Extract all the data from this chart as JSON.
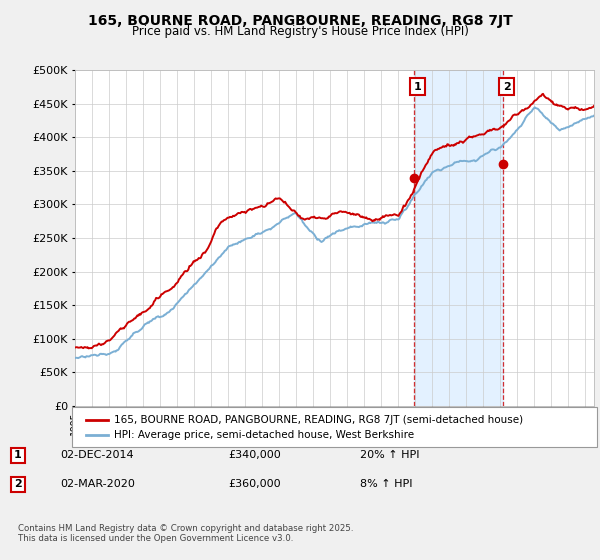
{
  "title": "165, BOURNE ROAD, PANGBOURNE, READING, RG8 7JT",
  "subtitle": "Price paid vs. HM Land Registry's House Price Index (HPI)",
  "legend_line1": "165, BOURNE ROAD, PANGBOURNE, READING, RG8 7JT (semi-detached house)",
  "legend_line2": "HPI: Average price, semi-detached house, West Berkshire",
  "annotation1_date": "02-DEC-2014",
  "annotation1_price": "£340,000",
  "annotation1_hpi": "20% ↑ HPI",
  "annotation2_date": "02-MAR-2020",
  "annotation2_price": "£360,000",
  "annotation2_hpi": "8% ↑ HPI",
  "footnote": "Contains HM Land Registry data © Crown copyright and database right 2025.\nThis data is licensed under the Open Government Licence v3.0.",
  "price_color": "#cc0000",
  "hpi_color": "#7bafd4",
  "hpi_fill_color": "#ddeeff",
  "background_color": "#f0f0f0",
  "plot_bg_color": "#ffffff",
  "trans1_x": 2014.917,
  "trans1_y": 340000,
  "trans2_x": 2020.167,
  "trans2_y": 360000,
  "ylim": [
    0,
    500000
  ],
  "yticks": [
    0,
    50000,
    100000,
    150000,
    200000,
    250000,
    300000,
    350000,
    400000,
    450000,
    500000
  ],
  "xlim_start": 1995,
  "xlim_end": 2025.5
}
